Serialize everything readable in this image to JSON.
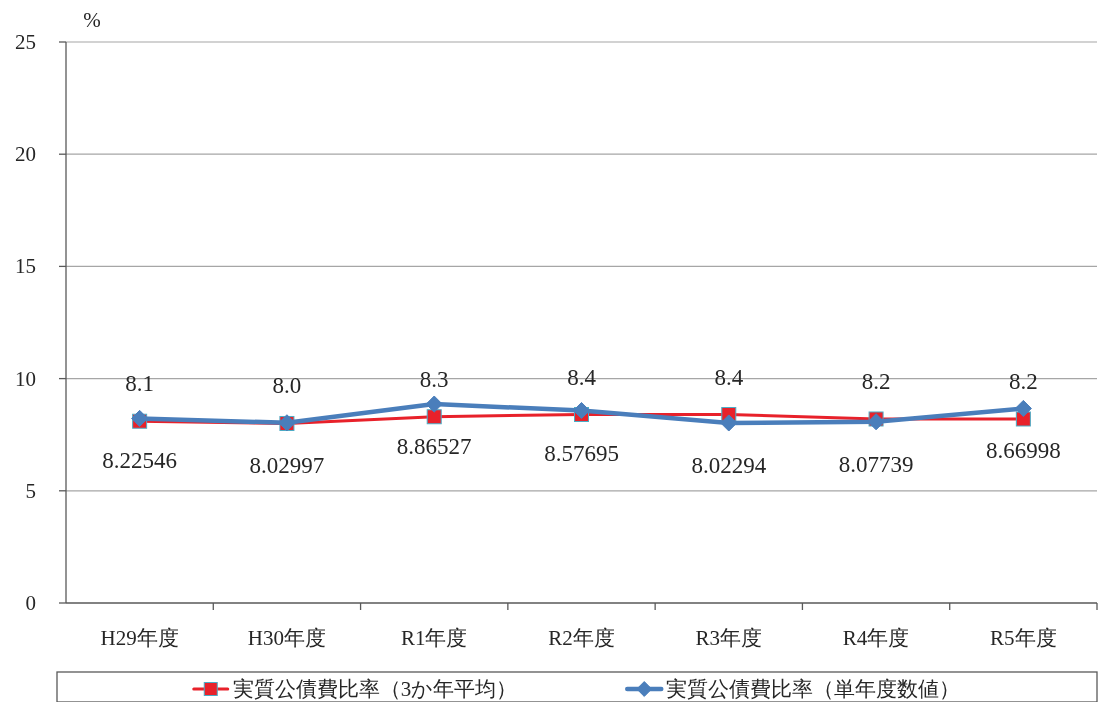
{
  "chart_data": {
    "type": "line",
    "ylabel": "%",
    "categories": [
      "H29年度",
      "H30年度",
      "R1年度",
      "R2年度",
      "R3年度",
      "R4年度",
      "R5年度"
    ],
    "ylim": [
      0,
      25
    ],
    "yticks": [
      0,
      5,
      10,
      15,
      20,
      25
    ],
    "grid": "y",
    "legend": "bottom",
    "series": [
      {
        "name": "実質公債費比率（3か年平均）",
        "color": "#e8212a",
        "marker": "square",
        "values": [
          8.1,
          8.0,
          8.3,
          8.4,
          8.4,
          8.2,
          8.2
        ],
        "value_labels": [
          "8.1",
          "8.0",
          "8.3",
          "8.4",
          "8.4",
          "8.2",
          "8.2"
        ]
      },
      {
        "name": "実質公債費比率（単年度数値）",
        "color": "#4a7ebb",
        "marker": "diamond",
        "values": [
          8.22546,
          8.02997,
          8.86527,
          8.57695,
          8.02294,
          8.07739,
          8.66998
        ],
        "value_labels": [
          "8.22546",
          "8.02997",
          "8.86527",
          "8.57695",
          "8.02294",
          "8.07739",
          "8.66998"
        ]
      }
    ]
  }
}
